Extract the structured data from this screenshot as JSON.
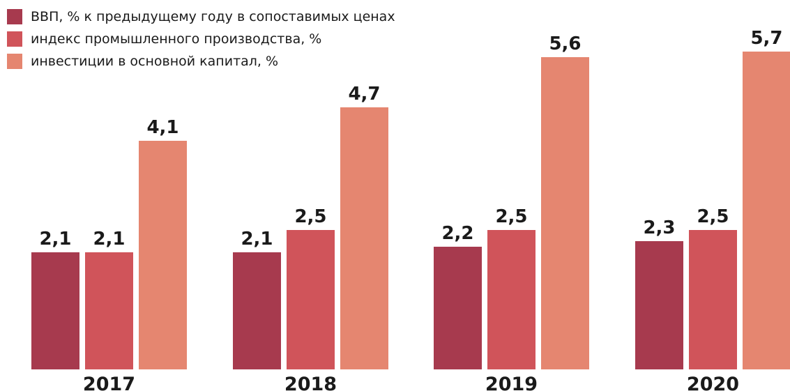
{
  "chart_data": {
    "type": "bar",
    "categories": [
      "2017",
      "2018",
      "2019",
      "2020"
    ],
    "series": [
      {
        "name": "ВВП, % к предыдущему году в сопоставимых ценах",
        "values": [
          2.1,
          2.1,
          2.2,
          2.3
        ],
        "labels": [
          "2,1",
          "2,1",
          "2,2",
          "2,3"
        ],
        "color": "#A73A4E"
      },
      {
        "name": "индекс промышленного производства, %",
        "values": [
          2.1,
          2.5,
          2.5,
          2.5
        ],
        "labels": [
          "2,1",
          "2,5",
          "2,5",
          "2,5"
        ],
        "color": "#D0545A"
      },
      {
        "name": "инвестиции в основной капитал, %",
        "values": [
          4.1,
          4.7,
          5.6,
          5.7
        ],
        "labels": [
          "4,1",
          "4,7",
          "5,6",
          "5,7"
        ],
        "color": "#E58670"
      }
    ],
    "ylim": [
      0,
      5.8
    ],
    "grid": false,
    "legend": "top-left"
  }
}
